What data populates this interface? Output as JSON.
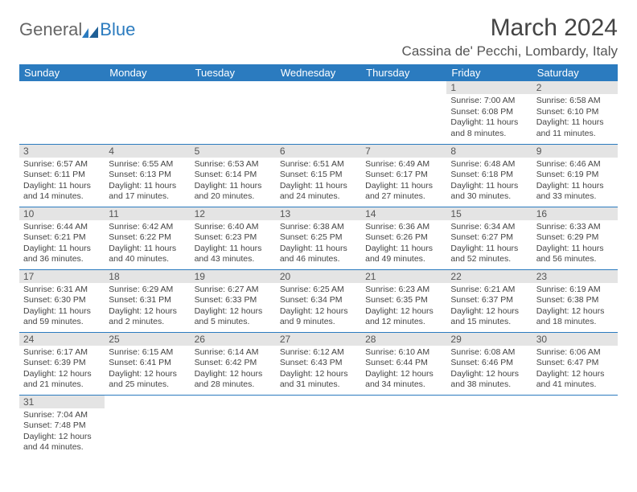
{
  "logo": {
    "part1": "General",
    "part2": "Blue"
  },
  "title": "March 2024",
  "location": "Cassina de' Pecchi, Lombardy, Italy",
  "colors": {
    "header_bg": "#2b7bbf",
    "daynum_bg": "#e4e4e4",
    "row_border": "#2b7bbf"
  },
  "dayHeaders": [
    "Sunday",
    "Monday",
    "Tuesday",
    "Wednesday",
    "Thursday",
    "Friday",
    "Saturday"
  ],
  "weeks": [
    [
      null,
      null,
      null,
      null,
      null,
      {
        "n": "1",
        "l1": "Sunrise: 7:00 AM",
        "l2": "Sunset: 6:08 PM",
        "l3": "Daylight: 11 hours",
        "l4": "and 8 minutes."
      },
      {
        "n": "2",
        "l1": "Sunrise: 6:58 AM",
        "l2": "Sunset: 6:10 PM",
        "l3": "Daylight: 11 hours",
        "l4": "and 11 minutes."
      }
    ],
    [
      {
        "n": "3",
        "l1": "Sunrise: 6:57 AM",
        "l2": "Sunset: 6:11 PM",
        "l3": "Daylight: 11 hours",
        "l4": "and 14 minutes."
      },
      {
        "n": "4",
        "l1": "Sunrise: 6:55 AM",
        "l2": "Sunset: 6:13 PM",
        "l3": "Daylight: 11 hours",
        "l4": "and 17 minutes."
      },
      {
        "n": "5",
        "l1": "Sunrise: 6:53 AM",
        "l2": "Sunset: 6:14 PM",
        "l3": "Daylight: 11 hours",
        "l4": "and 20 minutes."
      },
      {
        "n": "6",
        "l1": "Sunrise: 6:51 AM",
        "l2": "Sunset: 6:15 PM",
        "l3": "Daylight: 11 hours",
        "l4": "and 24 minutes."
      },
      {
        "n": "7",
        "l1": "Sunrise: 6:49 AM",
        "l2": "Sunset: 6:17 PM",
        "l3": "Daylight: 11 hours",
        "l4": "and 27 minutes."
      },
      {
        "n": "8",
        "l1": "Sunrise: 6:48 AM",
        "l2": "Sunset: 6:18 PM",
        "l3": "Daylight: 11 hours",
        "l4": "and 30 minutes."
      },
      {
        "n": "9",
        "l1": "Sunrise: 6:46 AM",
        "l2": "Sunset: 6:19 PM",
        "l3": "Daylight: 11 hours",
        "l4": "and 33 minutes."
      }
    ],
    [
      {
        "n": "10",
        "l1": "Sunrise: 6:44 AM",
        "l2": "Sunset: 6:21 PM",
        "l3": "Daylight: 11 hours",
        "l4": "and 36 minutes."
      },
      {
        "n": "11",
        "l1": "Sunrise: 6:42 AM",
        "l2": "Sunset: 6:22 PM",
        "l3": "Daylight: 11 hours",
        "l4": "and 40 minutes."
      },
      {
        "n": "12",
        "l1": "Sunrise: 6:40 AM",
        "l2": "Sunset: 6:23 PM",
        "l3": "Daylight: 11 hours",
        "l4": "and 43 minutes."
      },
      {
        "n": "13",
        "l1": "Sunrise: 6:38 AM",
        "l2": "Sunset: 6:25 PM",
        "l3": "Daylight: 11 hours",
        "l4": "and 46 minutes."
      },
      {
        "n": "14",
        "l1": "Sunrise: 6:36 AM",
        "l2": "Sunset: 6:26 PM",
        "l3": "Daylight: 11 hours",
        "l4": "and 49 minutes."
      },
      {
        "n": "15",
        "l1": "Sunrise: 6:34 AM",
        "l2": "Sunset: 6:27 PM",
        "l3": "Daylight: 11 hours",
        "l4": "and 52 minutes."
      },
      {
        "n": "16",
        "l1": "Sunrise: 6:33 AM",
        "l2": "Sunset: 6:29 PM",
        "l3": "Daylight: 11 hours",
        "l4": "and 56 minutes."
      }
    ],
    [
      {
        "n": "17",
        "l1": "Sunrise: 6:31 AM",
        "l2": "Sunset: 6:30 PM",
        "l3": "Daylight: 11 hours",
        "l4": "and 59 minutes."
      },
      {
        "n": "18",
        "l1": "Sunrise: 6:29 AM",
        "l2": "Sunset: 6:31 PM",
        "l3": "Daylight: 12 hours",
        "l4": "and 2 minutes."
      },
      {
        "n": "19",
        "l1": "Sunrise: 6:27 AM",
        "l2": "Sunset: 6:33 PM",
        "l3": "Daylight: 12 hours",
        "l4": "and 5 minutes."
      },
      {
        "n": "20",
        "l1": "Sunrise: 6:25 AM",
        "l2": "Sunset: 6:34 PM",
        "l3": "Daylight: 12 hours",
        "l4": "and 9 minutes."
      },
      {
        "n": "21",
        "l1": "Sunrise: 6:23 AM",
        "l2": "Sunset: 6:35 PM",
        "l3": "Daylight: 12 hours",
        "l4": "and 12 minutes."
      },
      {
        "n": "22",
        "l1": "Sunrise: 6:21 AM",
        "l2": "Sunset: 6:37 PM",
        "l3": "Daylight: 12 hours",
        "l4": "and 15 minutes."
      },
      {
        "n": "23",
        "l1": "Sunrise: 6:19 AM",
        "l2": "Sunset: 6:38 PM",
        "l3": "Daylight: 12 hours",
        "l4": "and 18 minutes."
      }
    ],
    [
      {
        "n": "24",
        "l1": "Sunrise: 6:17 AM",
        "l2": "Sunset: 6:39 PM",
        "l3": "Daylight: 12 hours",
        "l4": "and 21 minutes."
      },
      {
        "n": "25",
        "l1": "Sunrise: 6:15 AM",
        "l2": "Sunset: 6:41 PM",
        "l3": "Daylight: 12 hours",
        "l4": "and 25 minutes."
      },
      {
        "n": "26",
        "l1": "Sunrise: 6:14 AM",
        "l2": "Sunset: 6:42 PM",
        "l3": "Daylight: 12 hours",
        "l4": "and 28 minutes."
      },
      {
        "n": "27",
        "l1": "Sunrise: 6:12 AM",
        "l2": "Sunset: 6:43 PM",
        "l3": "Daylight: 12 hours",
        "l4": "and 31 minutes."
      },
      {
        "n": "28",
        "l1": "Sunrise: 6:10 AM",
        "l2": "Sunset: 6:44 PM",
        "l3": "Daylight: 12 hours",
        "l4": "and 34 minutes."
      },
      {
        "n": "29",
        "l1": "Sunrise: 6:08 AM",
        "l2": "Sunset: 6:46 PM",
        "l3": "Daylight: 12 hours",
        "l4": "and 38 minutes."
      },
      {
        "n": "30",
        "l1": "Sunrise: 6:06 AM",
        "l2": "Sunset: 6:47 PM",
        "l3": "Daylight: 12 hours",
        "l4": "and 41 minutes."
      }
    ],
    [
      {
        "n": "31",
        "l1": "Sunrise: 7:04 AM",
        "l2": "Sunset: 7:48 PM",
        "l3": "Daylight: 12 hours",
        "l4": "and 44 minutes."
      },
      null,
      null,
      null,
      null,
      null,
      null
    ]
  ]
}
